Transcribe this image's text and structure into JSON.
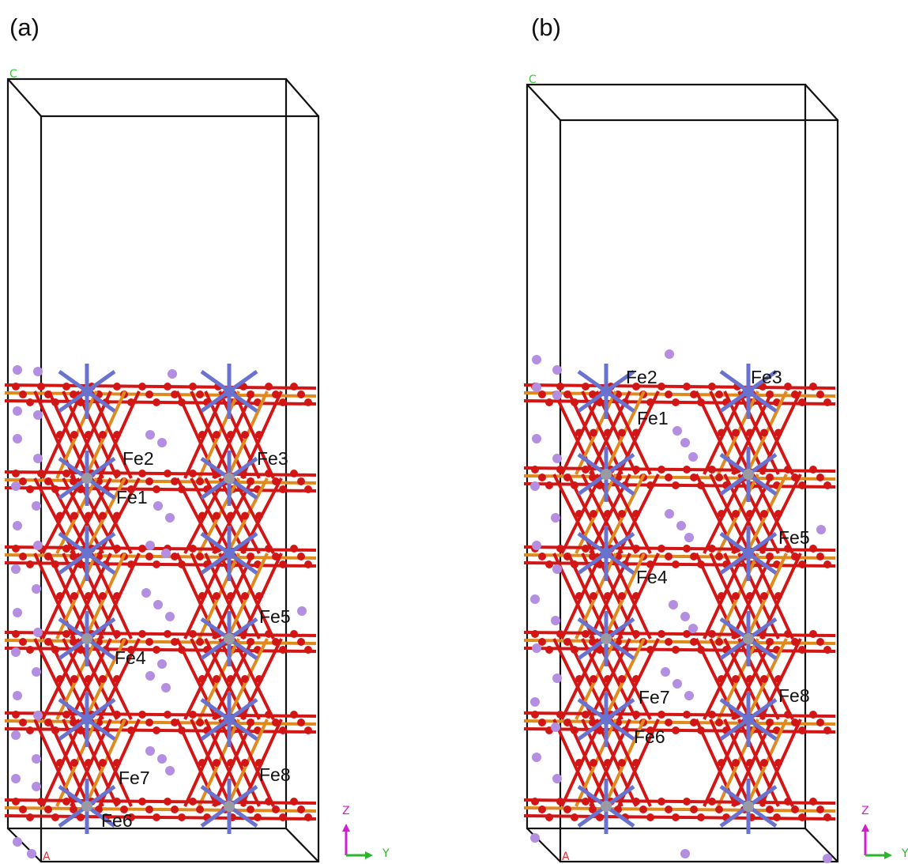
{
  "panels": [
    {
      "label": "(a)",
      "cell_c": "C",
      "cell_a": "A",
      "axis_z": "Z",
      "axis_y": "Y",
      "atom_labels": [
        "Fe2",
        "Fe3",
        "Fe1",
        "Fe5",
        "Fe4",
        "Fe7",
        "Fe8",
        "Fe6"
      ]
    },
    {
      "label": "(b)",
      "cell_c": "C",
      "cell_a": "A",
      "axis_z": "Z",
      "axis_y": "Y",
      "atom_labels": [
        "Fe2",
        "Fe3",
        "Fe1",
        "Fe5",
        "Fe4",
        "Fe7",
        "Fe8",
        "Fe6"
      ]
    }
  ]
}
